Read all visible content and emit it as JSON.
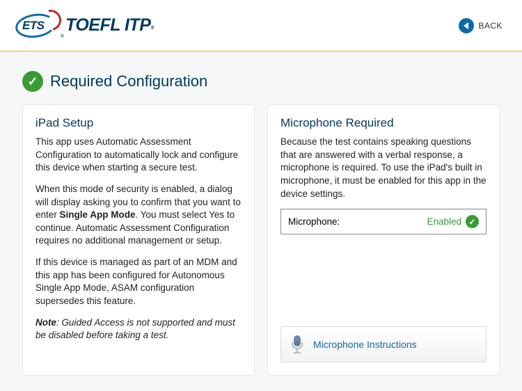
{
  "header": {
    "logo_text": "ETS",
    "product_name": "TOEFL ITP",
    "back_label": "BACK"
  },
  "page_title": "Required Configuration",
  "colors": {
    "brand_blue": "#0b6aa7",
    "brand_dark_blue": "#003a60",
    "brand_red": "#c0272d",
    "border_gold": "#f5b300",
    "success_green": "#3a9b35",
    "card_bg": "#ffffff",
    "page_bg": "#f6f7f7"
  },
  "left_card": {
    "title": "iPad Setup",
    "p1": "This app uses Automatic Assessment Configuration to automatically lock and configure this device when starting a secure test.",
    "p2_a": "When this mode of security is enabled, a dialog will display asking you to confirm that you want to enter ",
    "p2_bold": "Single App Mode",
    "p2_b": ". You must select Yes to continue. Automatic Assessment Configuration requires no additional management or setup.",
    "p3": "If this device is managed as part of an MDM and this app has been configured for Autonomous Single App Mode, ASAM configuration supersedes this feature.",
    "note_label": "Note",
    "note_text": ": Guided Access is not supported and must be disabled before taking a test."
  },
  "right_card": {
    "title": "Microphone Required",
    "p1": "Because the test contains speaking questions that are answered with a verbal response, a microphone is required. To use the iPad's built in microphone, it must be enabled for this app in the device settings.",
    "mic_label": "Microphone:",
    "mic_status": "Enabled",
    "instructions_label": "Microphone Instructions"
  }
}
